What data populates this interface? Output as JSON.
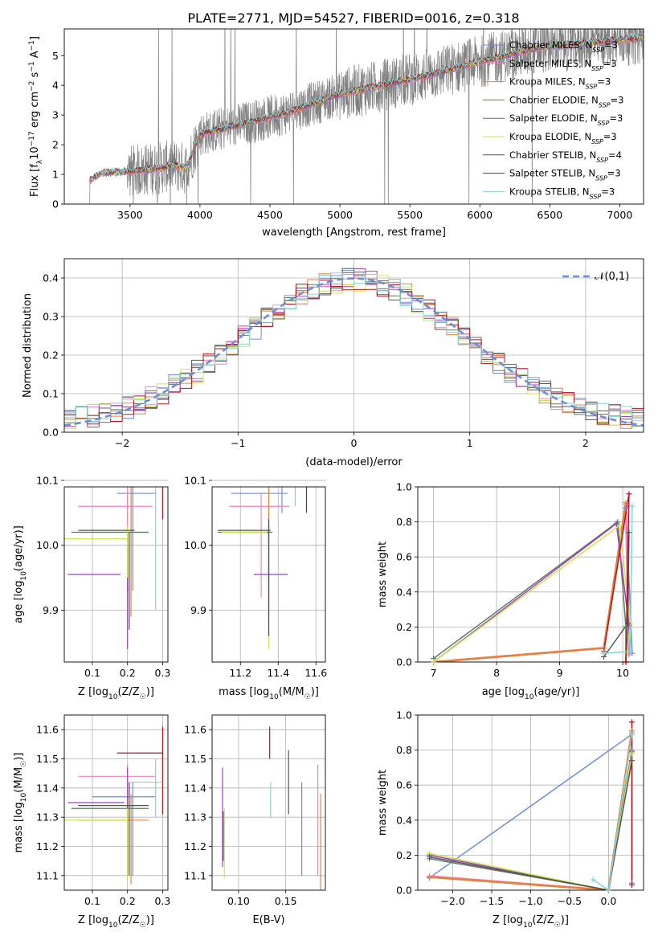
{
  "title": "PLATE=2771, MJD=54527, FIBERID=0016, z=0.318",
  "models": [
    {
      "name": "Chabrier MILES",
      "nssp": "3",
      "color": "#6a8fd8"
    },
    {
      "name": "Salpeter MILES",
      "nssp": "3",
      "color": "#ef7fc1"
    },
    {
      "name": "Kroupa MILES",
      "nssp": "3",
      "color": "#e6803a"
    },
    {
      "name": "Chabrier ELODIE",
      "nssp": "3",
      "color": "#5e7d5e"
    },
    {
      "name": "Salpeter ELODIE",
      "nssp": "3",
      "color": "#a23fc1"
    },
    {
      "name": "Kroupa ELODIE",
      "nssp": "3",
      "color": "#c8e84a"
    },
    {
      "name": "Chabrier STELIB",
      "nssp": "4",
      "color": "#555555"
    },
    {
      "name": "Salpeter STELIB",
      "nssp": "3",
      "color": "#b3141d"
    },
    {
      "name": "Kroupa STELIB",
      "nssp": "3",
      "color": "#7fd6d6"
    }
  ],
  "chart_data": [
    {
      "type": "line",
      "id": "spectrum",
      "xlabel": "wavelength [Angstrom, rest frame]",
      "ylabel_parts": [
        "Flux [f",
        "λ",
        "10",
        "−17",
        " erg cm",
        "−2",
        " s",
        "−1",
        " A",
        "−1",
        "]"
      ],
      "xlim": [
        3030,
        7170
      ],
      "ylim": [
        0,
        5.9
      ],
      "xticks": [
        3500,
        4000,
        4500,
        5000,
        5500,
        6000,
        6500,
        7000
      ],
      "yticks": [
        0,
        1,
        2,
        3,
        4,
        5
      ],
      "data_color": "#808080",
      "data_start": 3210,
      "continuum_x": [
        3210,
        3300,
        3500,
        3700,
        3800,
        3900,
        4000,
        4300,
        4600,
        5000,
        5300,
        5600,
        6000,
        6400,
        6800,
        7170
      ],
      "continuum_y": [
        0.8,
        1.05,
        1.1,
        1.2,
        1.3,
        1.2,
        2.35,
        2.7,
        3.05,
        3.7,
        4.0,
        4.3,
        4.8,
        5.25,
        5.45,
        5.6
      ]
    },
    {
      "type": "histogram",
      "id": "residuals",
      "xlabel": "(data-model)/error",
      "ylabel": "Normed distribution",
      "xlim": [
        -2.5,
        2.5
      ],
      "ylim": [
        0,
        0.45
      ],
      "xticks": [
        -2,
        -1,
        0,
        1,
        2
      ],
      "yticks": [
        0,
        0.1,
        0.2,
        0.3,
        0.4
      ],
      "bin_width": 0.1,
      "reference": {
        "label": "𝒩(0,1)",
        "mean": 0,
        "sigma": 1,
        "color": "#6a8fd8"
      }
    },
    {
      "type": "scatter",
      "id": "z-age",
      "xlabel_parts": [
        "Z [log",
        "10",
        "(Z/Z",
        "☉",
        ")]"
      ],
      "ylabel_parts": [
        "age  [log",
        "10",
        "(age/yr)]"
      ],
      "xlim": [
        0.02,
        0.315
      ],
      "ylim": [
        9.82,
        10.09
      ],
      "xticks": [
        0.1,
        0.2,
        0.3
      ],
      "yticks": [
        9.9,
        10.0,
        10.1
      ],
      "points": [
        {
          "m": 0,
          "x": 0.215,
          "xe": [
            0.17,
            0.28
          ],
          "y": 10.08,
          "ye": [
            9.93,
            10.09
          ]
        },
        {
          "m": 1,
          "x": 0.2,
          "xe": [
            0.06,
            0.27
          ],
          "y": 10.06,
          "ye": [
            9.93,
            10.09
          ]
        },
        {
          "m": 2,
          "x": 0.21,
          "xe": [
            0.06,
            0.26
          ],
          "y": 10.02,
          "ye": [
            9.89,
            10.13
          ]
        },
        {
          "m": 3,
          "x": 0.2,
          "xe": [
            0.04,
            0.26
          ],
          "y": 10.02,
          "ye": [
            9.93,
            10.02
          ]
        },
        {
          "m": 4,
          "x": 0.2,
          "xe": [
            0.03,
            0.18
          ],
          "y": 9.955,
          "ye": [
            9.84,
            10.0
          ]
        },
        {
          "m": 5,
          "x": 0.2,
          "xe": [
            0.02,
            0.2
          ],
          "y": 10.01,
          "ye": [
            9.95,
            10.03
          ]
        },
        {
          "m": 6,
          "x": 0.205,
          "xe": [
            0.06,
            0.22
          ],
          "y": 10.023,
          "ye": [
            9.87,
            10.02
          ]
        },
        {
          "m": 7,
          "x": 0.3,
          "xe": [
            0.16,
            0.3
          ],
          "y": 10.095,
          "ye": [
            10.04,
            10.14
          ]
        },
        {
          "m": 8,
          "x": 0.28,
          "xe": [
            0.2,
            0.3
          ],
          "y": 10.11,
          "ye": [
            9.9,
            10.1
          ]
        }
      ]
    },
    {
      "type": "scatter",
      "id": "mass-age",
      "xlabel_parts": [
        "mass [log",
        "10",
        "(M/M",
        "☉",
        ")]"
      ],
      "xlim": [
        11.05,
        11.65
      ],
      "ylim": [
        9.82,
        10.09
      ],
      "xticks": [
        11.2,
        11.4,
        11.6
      ],
      "yticks": [
        9.9,
        10.0,
        10.1
      ],
      "points": [
        {
          "m": 0,
          "x": 11.42,
          "xe": [
            11.15,
            11.45
          ],
          "y": 10.08,
          "ye": [
            10.05,
            10.12
          ]
        },
        {
          "m": 1,
          "x": 11.31,
          "xe": [
            11.14,
            11.46
          ],
          "y": 10.06,
          "ye": [
            9.92,
            10.08
          ]
        },
        {
          "m": 2,
          "x": 11.35,
          "xe": [
            11.1,
            11.35
          ],
          "y": 10.02,
          "ye": [
            9.89,
            10.13
          ]
        },
        {
          "m": 3,
          "x": 11.35,
          "xe": [
            11.08,
            11.37
          ],
          "y": 10.02,
          "ye": [
            9.92,
            10.03
          ]
        },
        {
          "m": 4,
          "x": 11.35,
          "xe": [
            11.27,
            11.45
          ],
          "y": 9.955,
          "ye": [
            9.86,
            10.04
          ]
        },
        {
          "m": 5,
          "x": 11.35,
          "xe": [
            11.1,
            11.34
          ],
          "y": 10.02,
          "ye": [
            9.84,
            10.03
          ]
        },
        {
          "m": 6,
          "x": 11.35,
          "xe": [
            11.08,
            11.36
          ],
          "y": 10.023,
          "ye": [
            9.86,
            10.04
          ]
        },
        {
          "m": 7,
          "x": 11.55,
          "xe": [
            11.35,
            11.6
          ],
          "y": 10.1,
          "ye": [
            10.05,
            10.15
          ]
        },
        {
          "m": 8,
          "x": 11.49,
          "xe": [
            11.38,
            11.52
          ],
          "y": 10.11,
          "ye": [
            10.06,
            10.15
          ]
        }
      ]
    },
    {
      "type": "line",
      "id": "age-weight",
      "xlabel_parts": [
        "age  [log",
        "10",
        "(age/yr)]"
      ],
      "ylabel": "mass weight",
      "xlim": [
        6.75,
        10.33
      ],
      "ylim": [
        0,
        1
      ],
      "xticks": [
        7,
        8,
        9,
        10
      ],
      "yticks": [
        0.0,
        0.2,
        0.4,
        0.6,
        0.8,
        1.0
      ],
      "series": [
        {
          "m": 0,
          "points": [
            [
              7.0,
              0.0
            ],
            [
              9.7,
              0.08
            ],
            [
              10.05,
              0.88
            ],
            [
              10.15,
              0.05
            ]
          ]
        },
        {
          "m": 1,
          "points": [
            [
              7.0,
              0.0
            ],
            [
              9.7,
              0.08
            ],
            [
              10.05,
              0.9
            ],
            [
              10.1,
              0.04
            ]
          ]
        },
        {
          "m": 2,
          "points": [
            [
              7.0,
              0.0
            ],
            [
              9.7,
              0.08
            ],
            [
              10.05,
              0.91
            ]
          ]
        },
        {
          "m": 3,
          "points": [
            [
              7.0,
              0.02
            ],
            [
              9.92,
              0.8
            ],
            [
              10.05,
              0.2
            ],
            [
              10.05,
              0.0
            ]
          ]
        },
        {
          "m": 4,
          "points": [
            [
              7.0,
              0.0
            ],
            [
              9.9,
              0.79
            ],
            [
              10.1,
              0.21
            ],
            [
              10.05,
              0.0
            ]
          ]
        },
        {
          "m": 5,
          "points": [
            [
              7.0,
              0.0
            ],
            [
              9.95,
              0.78
            ],
            [
              10.12,
              0.22
            ],
            [
              10.05,
              0.0
            ]
          ]
        },
        {
          "m": 6,
          "points": [
            [
              9.7,
              0.03
            ],
            [
              10.08,
              0.22
            ],
            [
              10.1,
              0.74
            ],
            [
              10.05,
              0.0
            ]
          ]
        },
        {
          "m": 7,
          "points": [
            [
              9.7,
              0.06
            ],
            [
              10.1,
              0.96
            ],
            [
              10.05,
              0.0
            ]
          ]
        },
        {
          "m": 8,
          "points": [
            [
              9.7,
              0.05
            ],
            [
              10.12,
              0.06
            ],
            [
              10.15,
              0.89
            ]
          ]
        }
      ]
    },
    {
      "type": "scatter",
      "id": "z-mass",
      "xlabel_parts": [
        "Z [log",
        "10",
        "(Z/Z",
        "☉",
        ")]"
      ],
      "ylabel_parts": [
        "mass [log",
        "10",
        "(M/M",
        "☉",
        ")]"
      ],
      "xlim": [
        0.02,
        0.315
      ],
      "ylim": [
        11.05,
        11.65
      ],
      "xticks": [
        0.1,
        0.2,
        0.3
      ],
      "yticks": [
        11.1,
        11.2,
        11.3,
        11.4,
        11.5,
        11.6
      ],
      "points": [
        {
          "m": 0,
          "x": 0.215,
          "xe": [
            0.1,
            0.28
          ],
          "y": 11.37,
          "ye": [
            11.1,
            11.42
          ]
        },
        {
          "m": 1,
          "x": 0.2,
          "xe": [
            0.06,
            0.28
          ],
          "y": 11.44,
          "ye": [
            11.1,
            11.48
          ]
        },
        {
          "m": 2,
          "x": 0.21,
          "xe": [
            0.06,
            0.26
          ],
          "y": 11.29,
          "ye": [
            11.07,
            11.38
          ]
        },
        {
          "m": 3,
          "x": 0.2,
          "xe": [
            0.04,
            0.26
          ],
          "y": 11.33,
          "ye": [
            11.1,
            11.35
          ]
        },
        {
          "m": 4,
          "x": 0.2,
          "xe": [
            0.03,
            0.19
          ],
          "y": 11.35,
          "ye": [
            11.1,
            11.47
          ]
        },
        {
          "m": 5,
          "x": 0.2,
          "xe": [
            0.02,
            0.2
          ],
          "y": 11.29,
          "ye": [
            11.09,
            11.33
          ]
        },
        {
          "m": 6,
          "x": 0.205,
          "xe": [
            0.06,
            0.26
          ],
          "y": 11.34,
          "ye": [
            11.1,
            11.42
          ]
        },
        {
          "m": 7,
          "x": 0.3,
          "xe": [
            0.17,
            0.3
          ],
          "y": 11.52,
          "ye": [
            11.31,
            11.61
          ]
        },
        {
          "m": 8,
          "x": 0.28,
          "xe": [
            0.2,
            0.3
          ],
          "y": 11.42,
          "ye": [
            11.3,
            11.5
          ]
        }
      ]
    },
    {
      "type": "scatter",
      "id": "ebv-mass",
      "xlabel": "E(B-V)",
      "xlim": [
        0.072,
        0.192
      ],
      "ylim": [
        11.05,
        11.65
      ],
      "xticks": [
        0.1,
        0.15
      ],
      "yticks": [
        11.1,
        11.2,
        11.3,
        11.4,
        11.5,
        11.6
      ],
      "points": [
        {
          "m": 0,
          "x": 0.167,
          "ye": [
            11.1,
            11.42
          ]
        },
        {
          "m": 1,
          "x": 0.184,
          "ye": [
            11.1,
            11.48
          ]
        },
        {
          "m": 2,
          "x": 0.187,
          "ye": [
            11.05,
            11.38
          ]
        },
        {
          "m": 3,
          "x": 0.084,
          "ye": [
            11.15,
            11.32
          ]
        },
        {
          "m": 4,
          "x": 0.083,
          "ye": [
            11.13,
            11.47
          ]
        },
        {
          "m": 5,
          "x": 0.085,
          "ye": [
            11.09,
            11.33
          ]
        },
        {
          "m": 6,
          "x": 0.153,
          "ye": [
            11.31,
            11.53
          ]
        },
        {
          "m": 7,
          "x": 0.133,
          "ye": [
            11.5,
            11.61
          ]
        },
        {
          "m": 8,
          "x": 0.134,
          "ye": [
            11.3,
            11.42
          ]
        }
      ]
    },
    {
      "type": "line",
      "id": "z-weight",
      "xlabel_parts": [
        "Z [log",
        "10",
        "(Z/Z",
        "☉",
        ")]"
      ],
      "ylabel": "mass weight",
      "xlim": [
        -2.45,
        0.45
      ],
      "ylim": [
        0,
        1
      ],
      "xticks": [
        -2.0,
        -1.5,
        -1.0,
        -0.5,
        0.0
      ],
      "yticks": [
        0.0,
        0.2,
        0.4,
        0.6,
        0.8,
        1.0
      ],
      "series": [
        {
          "m": 0,
          "points": [
            [
              -2.3,
              0.07
            ],
            [
              0.3,
              0.89
            ],
            [
              0.3,
              0.04
            ]
          ]
        },
        {
          "m": 1,
          "points": [
            [
              -2.3,
              0.08
            ],
            [
              0.0,
              0.0
            ],
            [
              0.3,
              0.9
            ]
          ]
        },
        {
          "m": 2,
          "points": [
            [
              -2.3,
              0.075
            ],
            [
              0.0,
              0.0
            ],
            [
              0.3,
              0.91
            ]
          ]
        },
        {
          "m": 3,
          "points": [
            [
              -2.3,
              0.18
            ],
            [
              0.0,
              0.0
            ],
            [
              0.3,
              0.8
            ]
          ]
        },
        {
          "m": 4,
          "points": [
            [
              -2.3,
              0.2
            ],
            [
              0.0,
              0.0
            ],
            [
              0.3,
              0.79
            ]
          ]
        },
        {
          "m": 5,
          "points": [
            [
              -2.3,
              0.21
            ],
            [
              0.0,
              0.0
            ],
            [
              0.3,
              0.78
            ]
          ]
        },
        {
          "m": 6,
          "points": [
            [
              -2.3,
              0.19
            ],
            [
              0.0,
              0.0
            ],
            [
              0.3,
              0.74
            ]
          ]
        },
        {
          "m": 7,
          "points": [
            [
              0.3,
              0.96
            ],
            [
              0.3,
              0.03
            ]
          ]
        },
        {
          "m": 8,
          "points": [
            [
              -0.2,
              0.06
            ],
            [
              0.0,
              0.0
            ],
            [
              0.3,
              0.89
            ]
          ]
        }
      ]
    }
  ]
}
